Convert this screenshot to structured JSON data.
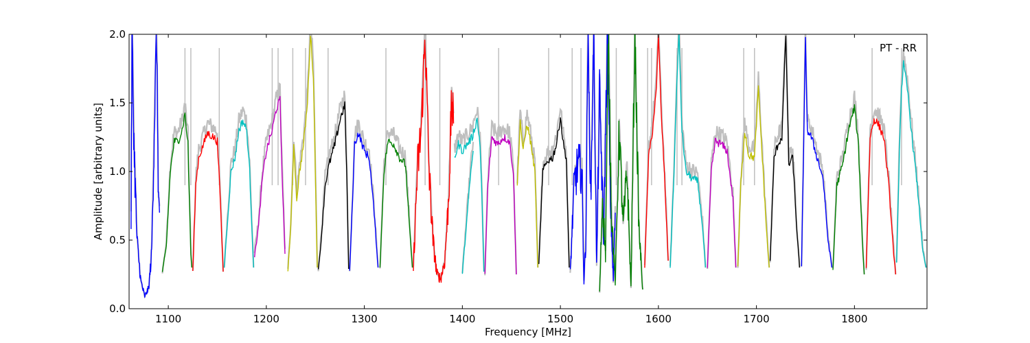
{
  "chart_data": {
    "type": "line",
    "annotation": "PT - RR",
    "xlabel": "Frequency [MHz]",
    "ylabel": "Amplitude [arbitrary units]",
    "xlim": [
      1060,
      1874
    ],
    "ylim": [
      0.0,
      2.0
    ],
    "x_ticks": [
      1100,
      1200,
      1300,
      1400,
      1500,
      1600,
      1700,
      1800
    ],
    "x_tick_labels": [
      "1100",
      "1200",
      "1300",
      "1400",
      "1500",
      "1600",
      "1700",
      "1800"
    ],
    "y_ticks": [
      0.0,
      0.5,
      1.0,
      1.5,
      2.0
    ],
    "y_tick_labels": [
      "0.0",
      "0.5",
      "1.0",
      "1.5",
      "2.0"
    ],
    "grid": false,
    "background_trace_color": "#bfbfbf",
    "series": [
      {
        "color": "#0000ff",
        "points": [
          [
            1062,
            0.65
          ],
          [
            1063,
            2.0
          ],
          [
            1065,
            1.2
          ],
          [
            1068,
            0.5
          ],
          [
            1072,
            0.2
          ],
          [
            1076,
            0.09
          ],
          [
            1080,
            0.15
          ],
          [
            1083,
            0.4
          ],
          [
            1086,
            1.4
          ],
          [
            1088,
            2.0
          ],
          [
            1090,
            0.8
          ],
          [
            1091,
            0.7
          ]
        ]
      },
      {
        "color": "#008000",
        "points": [
          [
            1094,
            0.27
          ],
          [
            1098,
            0.45
          ],
          [
            1102,
            1.0
          ],
          [
            1106,
            1.22
          ],
          [
            1110,
            1.22
          ],
          [
            1114,
            1.3
          ],
          [
            1117,
            1.42
          ],
          [
            1120,
            1.2
          ],
          [
            1123,
            0.4
          ],
          [
            1124,
            0.3
          ]
        ]
      },
      {
        "color": "#ff0000",
        "points": [
          [
            1125,
            0.27
          ],
          [
            1128,
            0.9
          ],
          [
            1131,
            1.1
          ],
          [
            1136,
            1.2
          ],
          [
            1140,
            1.28
          ],
          [
            1146,
            1.25
          ],
          [
            1150,
            1.22
          ],
          [
            1153,
            0.8
          ],
          [
            1156,
            0.27
          ]
        ]
      },
      {
        "color": "#00bfbf",
        "points": [
          [
            1157,
            0.3
          ],
          [
            1160,
            0.6
          ],
          [
            1164,
            1.0
          ],
          [
            1168,
            1.1
          ],
          [
            1172,
            1.3
          ],
          [
            1176,
            1.37
          ],
          [
            1180,
            1.3
          ],
          [
            1183,
            1.0
          ],
          [
            1187,
            0.3
          ]
        ]
      },
      {
        "color": "#bf00bf",
        "points": [
          [
            1188,
            0.38
          ],
          [
            1192,
            0.6
          ],
          [
            1196,
            0.95
          ],
          [
            1200,
            1.15
          ],
          [
            1206,
            1.3
          ],
          [
            1210,
            1.45
          ],
          [
            1214,
            1.52
          ],
          [
            1216,
            1.0
          ],
          [
            1219,
            0.4
          ]
        ]
      },
      {
        "color": "#bfbf00",
        "points": [
          [
            1222,
            0.28
          ],
          [
            1225,
            0.6
          ],
          [
            1228,
            1.2
          ],
          [
            1231,
            0.8
          ],
          [
            1234,
            1.0
          ],
          [
            1238,
            1.2
          ],
          [
            1242,
            1.5
          ],
          [
            1245,
            2.0
          ],
          [
            1248,
            1.7
          ],
          [
            1250,
            1.0
          ],
          [
            1252,
            0.3
          ]
        ]
      },
      {
        "color": "#000000",
        "points": [
          [
            1253,
            0.28
          ],
          [
            1256,
            0.5
          ],
          [
            1260,
            0.9
          ],
          [
            1264,
            1.05
          ],
          [
            1270,
            1.2
          ],
          [
            1276,
            1.4
          ],
          [
            1280,
            1.48
          ],
          [
            1282,
            1.0
          ],
          [
            1284,
            0.29
          ]
        ]
      },
      {
        "color": "#0000ff",
        "points": [
          [
            1285,
            0.27
          ],
          [
            1288,
            0.8
          ],
          [
            1290,
            1.2
          ],
          [
            1294,
            1.28
          ],
          [
            1300,
            1.15
          ],
          [
            1305,
            1.1
          ],
          [
            1310,
            0.7
          ],
          [
            1314,
            0.3
          ]
        ]
      },
      {
        "color": "#008000",
        "points": [
          [
            1316,
            0.3
          ],
          [
            1320,
            1.0
          ],
          [
            1324,
            1.22
          ],
          [
            1330,
            1.2
          ],
          [
            1336,
            1.1
          ],
          [
            1342,
            1.05
          ],
          [
            1346,
            0.6
          ],
          [
            1349,
            0.3
          ]
        ]
      },
      {
        "color": "#ff0000",
        "points": [
          [
            1350,
            0.3
          ],
          [
            1354,
            1.0
          ],
          [
            1358,
            1.3
          ],
          [
            1362,
            2.0
          ],
          [
            1366,
            1.0
          ],
          [
            1370,
            0.5
          ],
          [
            1374,
            0.25
          ],
          [
            1378,
            0.22
          ],
          [
            1382,
            0.35
          ],
          [
            1386,
            0.8
          ],
          [
            1389,
            1.5
          ],
          [
            1391,
            1.35
          ]
        ]
      },
      {
        "color": "#00bfbf",
        "points": [
          [
            1392,
            1.1
          ],
          [
            1396,
            1.2
          ],
          [
            1400,
            1.15
          ],
          [
            1405,
            1.2
          ],
          [
            1410,
            1.25
          ],
          [
            1415,
            1.38
          ],
          [
            1418,
            1.2
          ],
          [
            1420,
            0.8
          ],
          [
            1422,
            0.27
          ]
        ]
      },
      {
        "color": "#00bfbf",
        "points": [
          [
            1400,
            0.26
          ],
          [
            1404,
            0.6
          ],
          [
            1408,
            0.95
          ],
          [
            1411,
            1.15
          ]
        ]
      },
      {
        "color": "#bf00bf",
        "points": [
          [
            1423,
            0.25
          ],
          [
            1426,
            0.9
          ],
          [
            1430,
            1.25
          ],
          [
            1436,
            1.2
          ],
          [
            1442,
            1.25
          ],
          [
            1448,
            1.22
          ],
          [
            1452,
            1.0
          ],
          [
            1455,
            0.25
          ]
        ]
      },
      {
        "color": "#bfbf00",
        "points": [
          [
            1456,
            0.9
          ],
          [
            1459,
            1.37
          ],
          [
            1462,
            1.15
          ],
          [
            1466,
            1.35
          ],
          [
            1470,
            1.2
          ],
          [
            1474,
            1.0
          ],
          [
            1477,
            0.3
          ]
        ]
      },
      {
        "color": "#000000",
        "points": [
          [
            1478,
            0.32
          ],
          [
            1482,
            1.0
          ],
          [
            1487,
            1.08
          ],
          [
            1492,
            1.1
          ],
          [
            1496,
            1.2
          ],
          [
            1500,
            1.4
          ],
          [
            1503,
            1.2
          ],
          [
            1506,
            1.1
          ],
          [
            1509,
            0.3
          ]
        ]
      },
      {
        "color": "#0000ff",
        "points": [
          [
            1510,
            0.25
          ],
          [
            1514,
            0.9
          ],
          [
            1518,
            1.05
          ],
          [
            1522,
            1.0
          ],
          [
            1524,
            0.2
          ],
          [
            1526,
            0.5
          ],
          [
            1528,
            2.0
          ],
          [
            1531,
            0.8
          ],
          [
            1534,
            2.0
          ],
          [
            1537,
            0.3
          ],
          [
            1540,
            1.6
          ],
          [
            1544,
            0.5
          ],
          [
            1548,
            2.0
          ],
          [
            1551,
            0.8
          ],
          [
            1554,
            0.2
          ],
          [
            1556,
            0.7
          ]
        ]
      },
      {
        "color": "#008000",
        "points": [
          [
            1540,
            0.12
          ],
          [
            1543,
            0.8
          ],
          [
            1546,
            0.4
          ],
          [
            1549,
            2.0
          ],
          [
            1552,
            0.7
          ],
          [
            1556,
            0.2
          ],
          [
            1560,
            1.3
          ],
          [
            1564,
            0.6
          ],
          [
            1568,
            1.0
          ],
          [
            1572,
            0.15
          ],
          [
            1576,
            2.0
          ],
          [
            1580,
            0.6
          ],
          [
            1584,
            0.14
          ]
        ]
      },
      {
        "color": "#ff0000",
        "points": [
          [
            1586,
            0.3
          ],
          [
            1590,
            1.1
          ],
          [
            1594,
            1.3
          ],
          [
            1598,
            1.6
          ],
          [
            1600,
            2.0
          ],
          [
            1603,
            1.4
          ],
          [
            1606,
            1.0
          ],
          [
            1610,
            0.35
          ]
        ]
      },
      {
        "color": "#00bfbf",
        "points": [
          [
            1612,
            0.3
          ],
          [
            1616,
            1.0
          ],
          [
            1618,
            1.5
          ],
          [
            1621,
            2.0
          ],
          [
            1624,
            1.3
          ],
          [
            1628,
            1.0
          ],
          [
            1634,
            0.95
          ],
          [
            1640,
            0.93
          ],
          [
            1645,
            0.6
          ],
          [
            1648,
            0.3
          ]
        ]
      },
      {
        "color": "#bf00bf",
        "points": [
          [
            1650,
            0.3
          ],
          [
            1654,
            1.0
          ],
          [
            1658,
            1.22
          ],
          [
            1664,
            1.2
          ],
          [
            1670,
            1.15
          ],
          [
            1676,
            0.8
          ],
          [
            1679,
            0.3
          ]
        ]
      },
      {
        "color": "#bfbf00",
        "points": [
          [
            1681,
            0.3
          ],
          [
            1684,
            0.9
          ],
          [
            1688,
            1.3
          ],
          [
            1692,
            1.12
          ],
          [
            1698,
            1.1
          ],
          [
            1702,
            1.6
          ],
          [
            1706,
            1.1
          ],
          [
            1710,
            0.6
          ],
          [
            1713,
            0.3
          ]
        ]
      },
      {
        "color": "#000000",
        "points": [
          [
            1714,
            0.35
          ],
          [
            1718,
            1.1
          ],
          [
            1722,
            1.2
          ],
          [
            1726,
            1.25
          ],
          [
            1730,
            2.0
          ],
          [
            1733,
            1.05
          ],
          [
            1737,
            1.1
          ],
          [
            1741,
            0.6
          ],
          [
            1744,
            0.3
          ]
        ]
      },
      {
        "color": "#0000ff",
        "points": [
          [
            1746,
            0.3
          ],
          [
            1750,
            1.95
          ],
          [
            1752,
            1.3
          ],
          [
            1756,
            1.25
          ],
          [
            1762,
            1.1
          ],
          [
            1768,
            0.95
          ],
          [
            1773,
            0.5
          ],
          [
            1777,
            0.3
          ]
        ]
      },
      {
        "color": "#008000",
        "points": [
          [
            1778,
            0.28
          ],
          [
            1782,
            0.9
          ],
          [
            1788,
            1.05
          ],
          [
            1794,
            1.3
          ],
          [
            1800,
            1.47
          ],
          [
            1804,
            1.2
          ],
          [
            1808,
            0.5
          ],
          [
            1810,
            0.25
          ]
        ]
      },
      {
        "color": "#ff0000",
        "points": [
          [
            1812,
            0.3
          ],
          [
            1816,
            1.25
          ],
          [
            1820,
            1.38
          ],
          [
            1824,
            1.35
          ],
          [
            1830,
            1.25
          ],
          [
            1835,
            0.9
          ],
          [
            1840,
            0.4
          ],
          [
            1842,
            0.25
          ]
        ]
      },
      {
        "color": "#00bfbf",
        "points": [
          [
            1843,
            0.33
          ],
          [
            1846,
            1.2
          ],
          [
            1848,
            1.6
          ],
          [
            1850,
            1.78
          ],
          [
            1854,
            1.6
          ],
          [
            1858,
            1.3
          ],
          [
            1864,
            0.9
          ],
          [
            1870,
            0.4
          ],
          [
            1873,
            0.3
          ]
        ]
      }
    ]
  }
}
